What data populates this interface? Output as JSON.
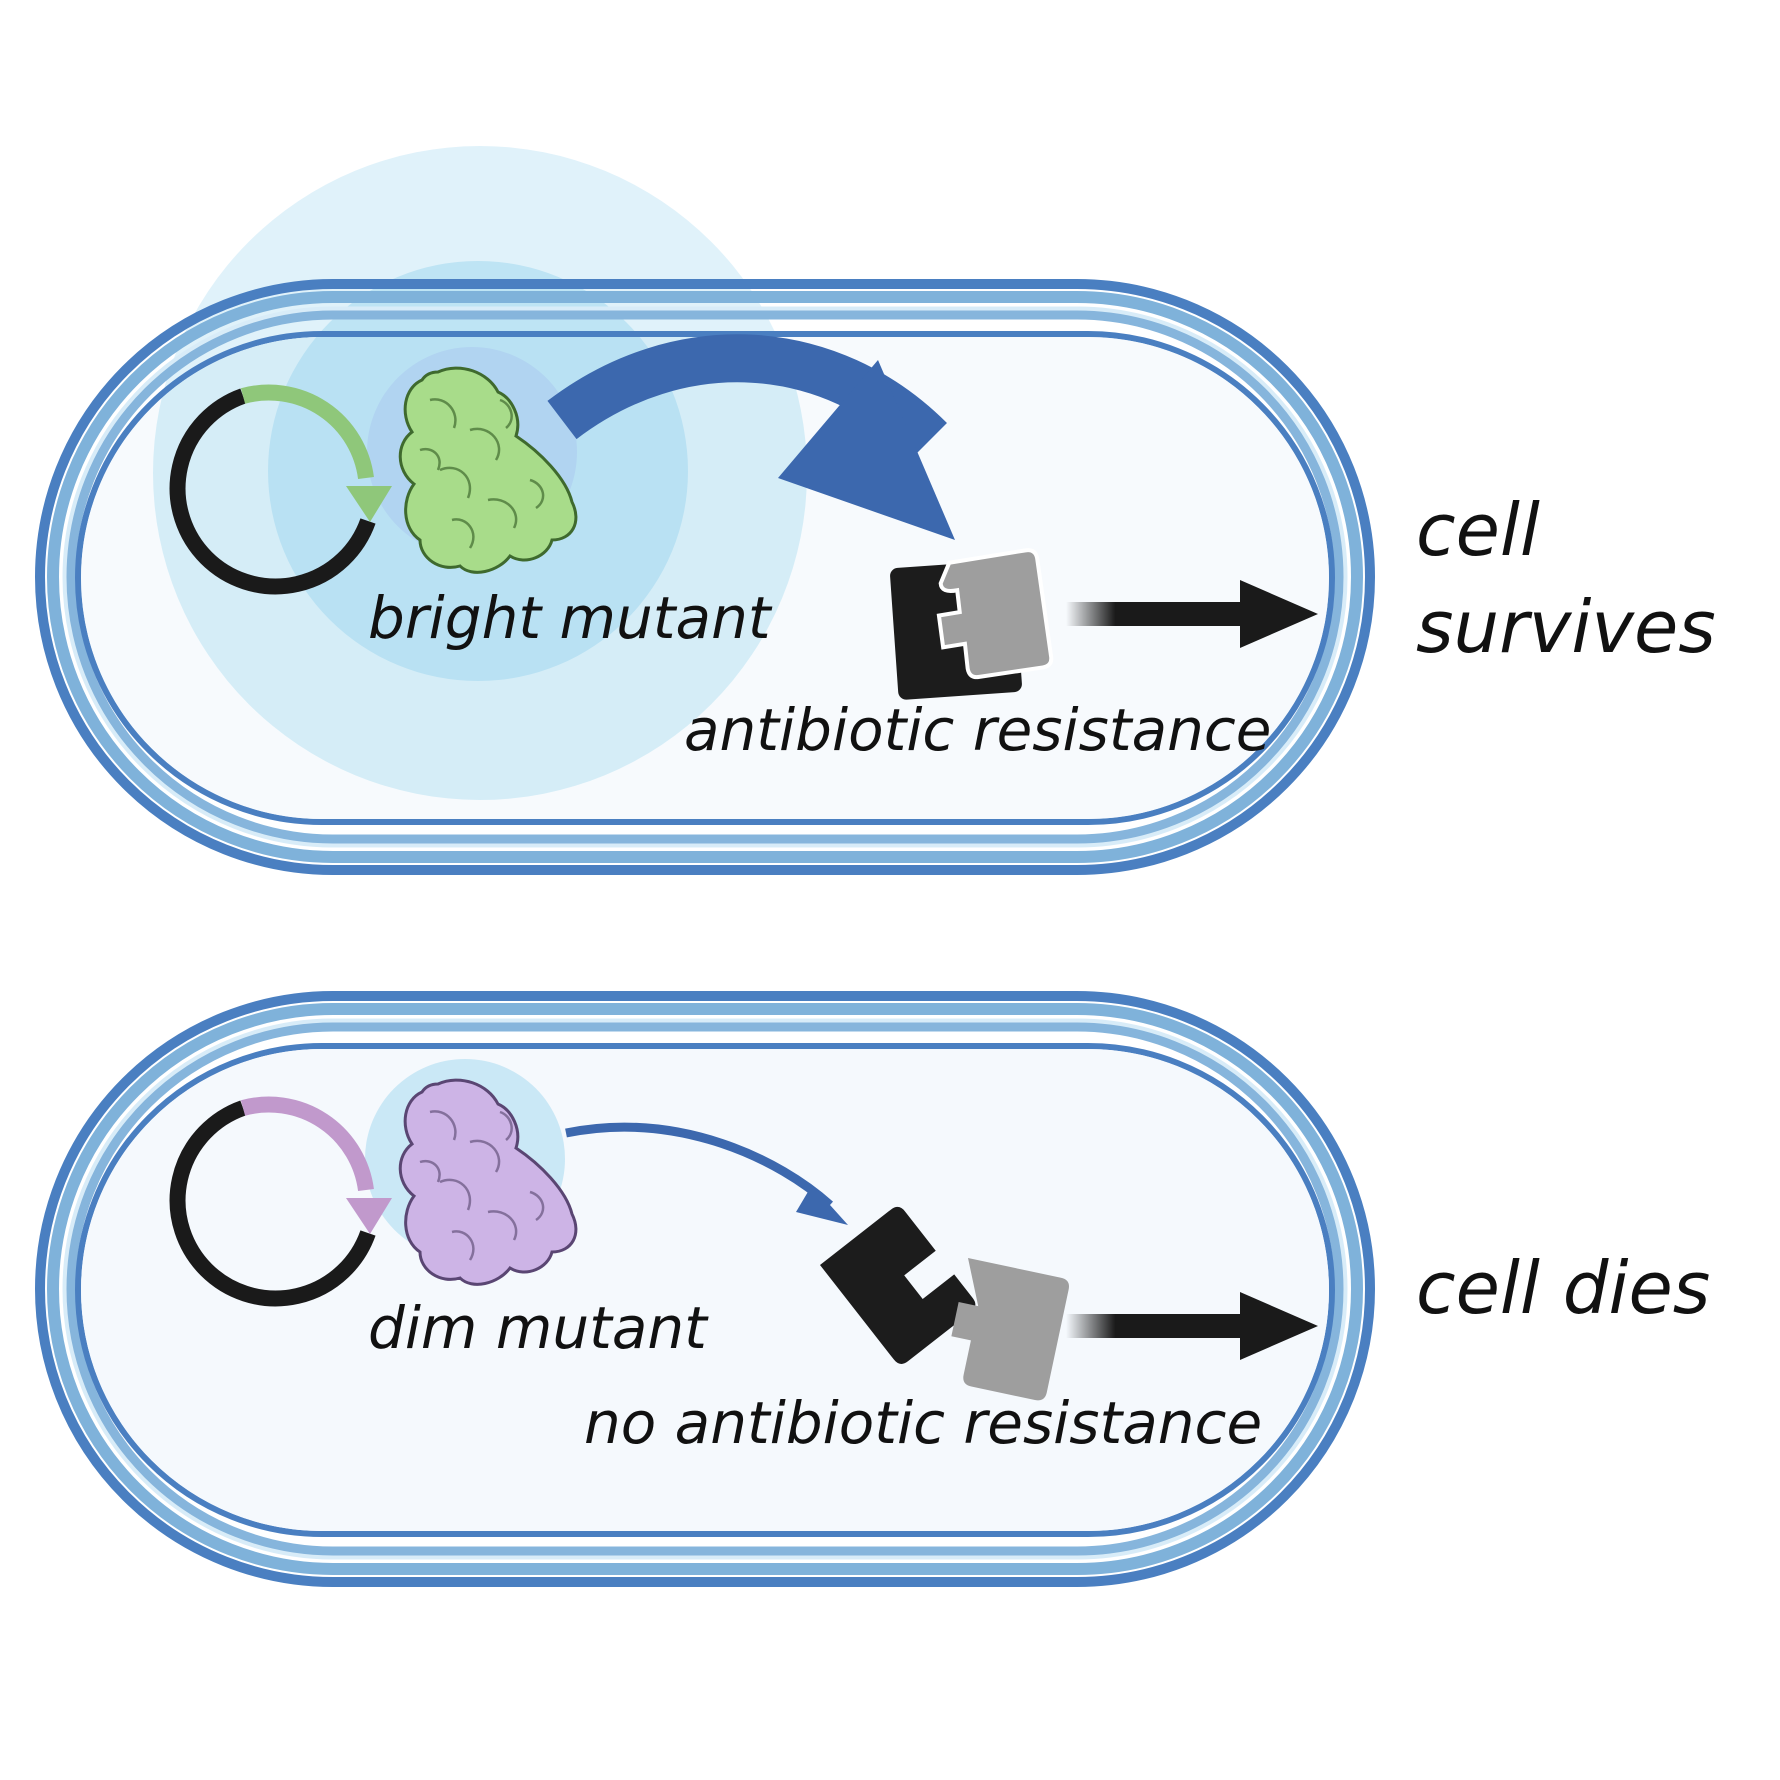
{
  "panels": [
    {
      "mutant_label": "bright mutant",
      "resistance_label": "antibiotic resistance",
      "outcome_line1": "cell",
      "outcome_line2": "survives",
      "protein_color": "#a8dc8a",
      "protein_stroke": "#3f6a2e",
      "gene_arrow_color": "#8fc77a"
    },
    {
      "mutant_label": "dim mutant",
      "resistance_label": "no antibiotic resistance",
      "outcome_line1": "cell dies",
      "protein_color": "#cdb4e6",
      "protein_stroke": "#5a4673",
      "gene_arrow_color": "#c199cc"
    }
  ],
  "colors": {
    "membrane_outer": "#4a7fc1",
    "membrane_mid": "#88b6dc",
    "cytoplasm": "#f5f9fd",
    "glow": "#9fd6ee",
    "signal_arrow": "#3c68ae",
    "plasmid": "#1a1a1a",
    "fragment_dark": "#1c1c1c",
    "fragment_light": "#9e9e9e"
  }
}
